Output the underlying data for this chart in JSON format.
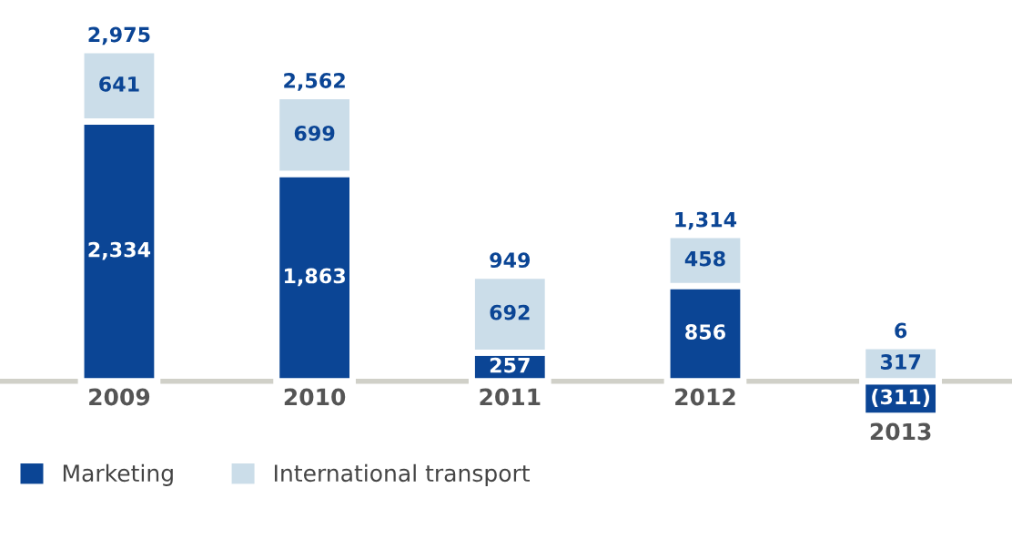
{
  "chart_data": {
    "type": "bar",
    "stacked": true,
    "categories": [
      "2009",
      "2010",
      "2011",
      "2012",
      "2013"
    ],
    "series": [
      {
        "name": "Marketing",
        "color": "#0b4595",
        "values": [
          2334,
          1863,
          257,
          856,
          -311
        ],
        "value_labels": [
          "2,334",
          "1,863",
          "257",
          "856",
          "(311)"
        ]
      },
      {
        "name": "International transport",
        "color": "#cbdde9",
        "values": [
          641,
          699,
          692,
          458,
          317
        ],
        "value_labels": [
          "641",
          "699",
          "692",
          "458",
          "317"
        ]
      }
    ],
    "totals": [
      "2,975",
      "2,562",
      "949",
      "1,314",
      "6"
    ],
    "legend": "bottom left"
  }
}
